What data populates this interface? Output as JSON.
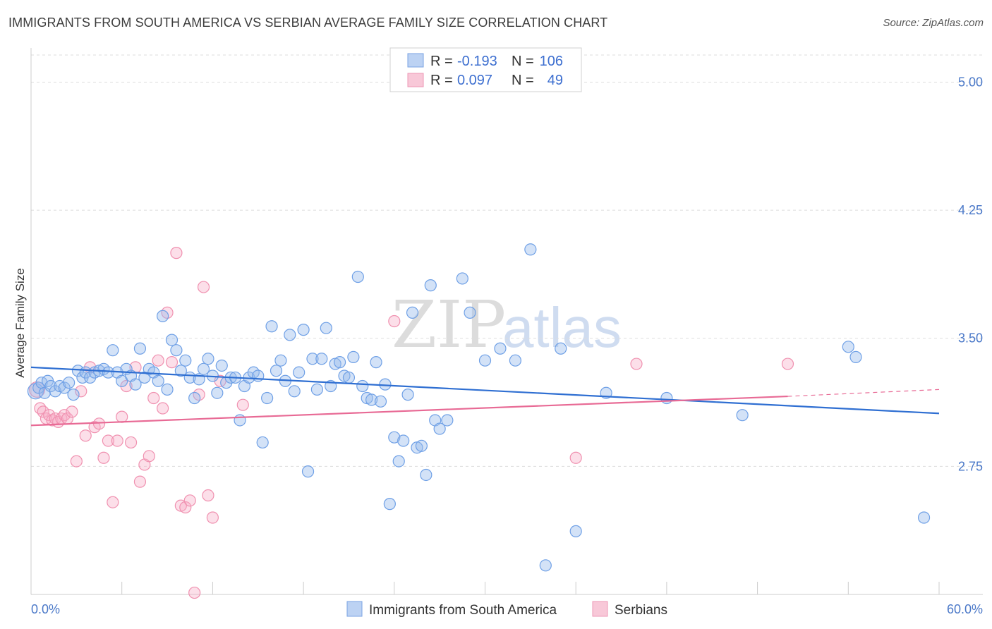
{
  "title": "IMMIGRANTS FROM SOUTH AMERICA VS SERBIAN AVERAGE FAMILY SIZE CORRELATION CHART",
  "source": "Source: ZipAtlas.com",
  "watermark": {
    "zip": "ZIP",
    "atlas": "atlas"
  },
  "legend_box": {
    "rows": [
      {
        "r_label": "R =",
        "r_value": "-0.193",
        "n_label": "N =",
        "n_value": "106"
      },
      {
        "r_label": "R =",
        "r_value": "0.097",
        "n_label": "N =",
        "n_value": "49"
      }
    ]
  },
  "chart_data": {
    "type": "scatter",
    "title": "IMMIGRANTS FROM SOUTH AMERICA VS SERBIAN AVERAGE FAMILY SIZE CORRELATION CHART",
    "xlabel": "",
    "ylabel": "Average Family Size",
    "xlim": [
      0,
      60
    ],
    "ylim": [
      2.0,
      5.2
    ],
    "x_tick_labels": [
      "0.0%",
      "60.0%"
    ],
    "y_ticks": [
      2.75,
      3.5,
      4.25,
      5.0
    ],
    "y_tick_labels": [
      "2.75",
      "3.50",
      "4.25",
      "5.00"
    ],
    "colors": {
      "blue": "#6fa0e6",
      "blue_line": "#2f6fd2",
      "pink": "#f091b0",
      "pink_line": "#e86a95"
    },
    "series": [
      {
        "name": "Immigrants from South America",
        "color": "#6fa0e6",
        "R": -0.193,
        "N": 106,
        "trend": {
          "x0": 0,
          "y0": 3.33,
          "x1": 60,
          "y1": 3.06
        },
        "points": [
          [
            0.3,
            3.19
          ],
          [
            0.5,
            3.21
          ],
          [
            0.7,
            3.24
          ],
          [
            0.9,
            3.18
          ],
          [
            1.1,
            3.25
          ],
          [
            1.3,
            3.22
          ],
          [
            1.6,
            3.19
          ],
          [
            1.9,
            3.22
          ],
          [
            2.2,
            3.21
          ],
          [
            2.5,
            3.24
          ],
          [
            2.8,
            3.17
          ],
          [
            3.1,
            3.31
          ],
          [
            3.4,
            3.27
          ],
          [
            3.6,
            3.3
          ],
          [
            3.9,
            3.27
          ],
          [
            4.2,
            3.3
          ],
          [
            4.5,
            3.31
          ],
          [
            4.8,
            3.32
          ],
          [
            5.1,
            3.3
          ],
          [
            5.4,
            3.43
          ],
          [
            5.7,
            3.3
          ],
          [
            6.0,
            3.25
          ],
          [
            6.3,
            3.32
          ],
          [
            6.6,
            3.28
          ],
          [
            6.9,
            3.23
          ],
          [
            7.2,
            3.44
          ],
          [
            7.5,
            3.27
          ],
          [
            7.8,
            3.32
          ],
          [
            8.1,
            3.3
          ],
          [
            8.4,
            3.25
          ],
          [
            8.7,
            3.63
          ],
          [
            9.0,
            3.2
          ],
          [
            9.3,
            3.49
          ],
          [
            9.6,
            3.43
          ],
          [
            9.9,
            3.31
          ],
          [
            10.2,
            3.37
          ],
          [
            10.5,
            3.27
          ],
          [
            10.8,
            3.15
          ],
          [
            11.1,
            3.26
          ],
          [
            11.4,
            3.32
          ],
          [
            11.7,
            3.38
          ],
          [
            12.0,
            3.28
          ],
          [
            12.3,
            3.18
          ],
          [
            12.6,
            3.34
          ],
          [
            12.9,
            3.24
          ],
          [
            13.2,
            3.27
          ],
          [
            13.5,
            3.27
          ],
          [
            13.8,
            3.02
          ],
          [
            14.1,
            3.22
          ],
          [
            14.4,
            3.27
          ],
          [
            14.7,
            3.3
          ],
          [
            15.0,
            3.28
          ],
          [
            15.3,
            2.89
          ],
          [
            15.6,
            3.15
          ],
          [
            15.9,
            3.57
          ],
          [
            16.2,
            3.31
          ],
          [
            16.5,
            3.37
          ],
          [
            16.8,
            3.25
          ],
          [
            17.1,
            3.52
          ],
          [
            17.4,
            3.19
          ],
          [
            17.7,
            3.3
          ],
          [
            18.0,
            3.55
          ],
          [
            18.3,
            2.72
          ],
          [
            18.6,
            3.38
          ],
          [
            18.9,
            3.2
          ],
          [
            19.2,
            3.38
          ],
          [
            19.5,
            3.56
          ],
          [
            19.8,
            3.22
          ],
          [
            20.1,
            3.35
          ],
          [
            20.4,
            3.36
          ],
          [
            20.7,
            3.28
          ],
          [
            21.0,
            3.27
          ],
          [
            21.3,
            3.39
          ],
          [
            21.6,
            3.86
          ],
          [
            21.9,
            3.22
          ],
          [
            22.2,
            3.15
          ],
          [
            22.5,
            3.14
          ],
          [
            22.8,
            3.36
          ],
          [
            23.1,
            3.13
          ],
          [
            23.4,
            3.23
          ],
          [
            23.7,
            2.53
          ],
          [
            24.0,
            2.92
          ],
          [
            24.3,
            2.78
          ],
          [
            24.6,
            2.9
          ],
          [
            24.9,
            3.17
          ],
          [
            25.2,
            3.65
          ],
          [
            25.5,
            2.86
          ],
          [
            25.8,
            2.87
          ],
          [
            26.1,
            2.7
          ],
          [
            26.4,
            3.81
          ],
          [
            26.7,
            3.02
          ],
          [
            27.0,
            2.97
          ],
          [
            27.5,
            3.02
          ],
          [
            28.5,
            3.85
          ],
          [
            29.0,
            3.65
          ],
          [
            30.0,
            3.37
          ],
          [
            31.0,
            3.44
          ],
          [
            32.0,
            3.37
          ],
          [
            33.0,
            4.02
          ],
          [
            34.0,
            2.17
          ],
          [
            35.0,
            3.44
          ],
          [
            36.0,
            2.37
          ],
          [
            38.0,
            3.18
          ],
          [
            42.0,
            3.15
          ],
          [
            47.0,
            3.05
          ],
          [
            54.0,
            3.45
          ],
          [
            54.5,
            3.39
          ],
          [
            59.0,
            2.45
          ]
        ]
      },
      {
        "name": "Serbians",
        "color": "#f091b0",
        "R": 0.097,
        "N": 49,
        "trend": {
          "x0": 0,
          "y0": 2.99,
          "x1": 50,
          "y1": 3.16,
          "dash_to_x": 60,
          "dash_to_y": 3.2
        },
        "points": [
          [
            0.4,
            3.2
          ],
          [
            0.6,
            3.09
          ],
          [
            0.8,
            3.07
          ],
          [
            1.0,
            3.03
          ],
          [
            1.2,
            3.05
          ],
          [
            1.4,
            3.02
          ],
          [
            1.6,
            3.03
          ],
          [
            1.8,
            3.01
          ],
          [
            2.0,
            3.03
          ],
          [
            2.2,
            3.05
          ],
          [
            2.4,
            3.03
          ],
          [
            2.7,
            3.07
          ],
          [
            3.0,
            2.78
          ],
          [
            3.3,
            3.19
          ],
          [
            3.6,
            2.93
          ],
          [
            3.9,
            3.33
          ],
          [
            4.2,
            2.98
          ],
          [
            4.5,
            3.0
          ],
          [
            4.8,
            2.8
          ],
          [
            5.1,
            2.9
          ],
          [
            5.4,
            2.54
          ],
          [
            5.7,
            2.9
          ],
          [
            6.0,
            3.04
          ],
          [
            6.3,
            3.22
          ],
          [
            6.6,
            2.89
          ],
          [
            6.9,
            3.33
          ],
          [
            7.2,
            2.66
          ],
          [
            7.5,
            2.76
          ],
          [
            7.8,
            2.81
          ],
          [
            8.1,
            3.15
          ],
          [
            8.4,
            3.37
          ],
          [
            8.7,
            3.09
          ],
          [
            9.0,
            3.65
          ],
          [
            9.3,
            3.36
          ],
          [
            9.6,
            4.0
          ],
          [
            9.9,
            2.52
          ],
          [
            10.2,
            2.51
          ],
          [
            10.5,
            2.55
          ],
          [
            10.8,
            2.01
          ],
          [
            11.1,
            3.17
          ],
          [
            11.4,
            3.8
          ],
          [
            11.7,
            2.58
          ],
          [
            12.0,
            2.45
          ],
          [
            12.5,
            3.25
          ],
          [
            14.0,
            3.11
          ],
          [
            24.0,
            3.6
          ],
          [
            36.0,
            2.8
          ],
          [
            40.0,
            3.35
          ],
          [
            50.0,
            3.35
          ]
        ]
      }
    ],
    "bottom_legend": [
      "Immigrants from South America",
      "Serbians"
    ]
  }
}
